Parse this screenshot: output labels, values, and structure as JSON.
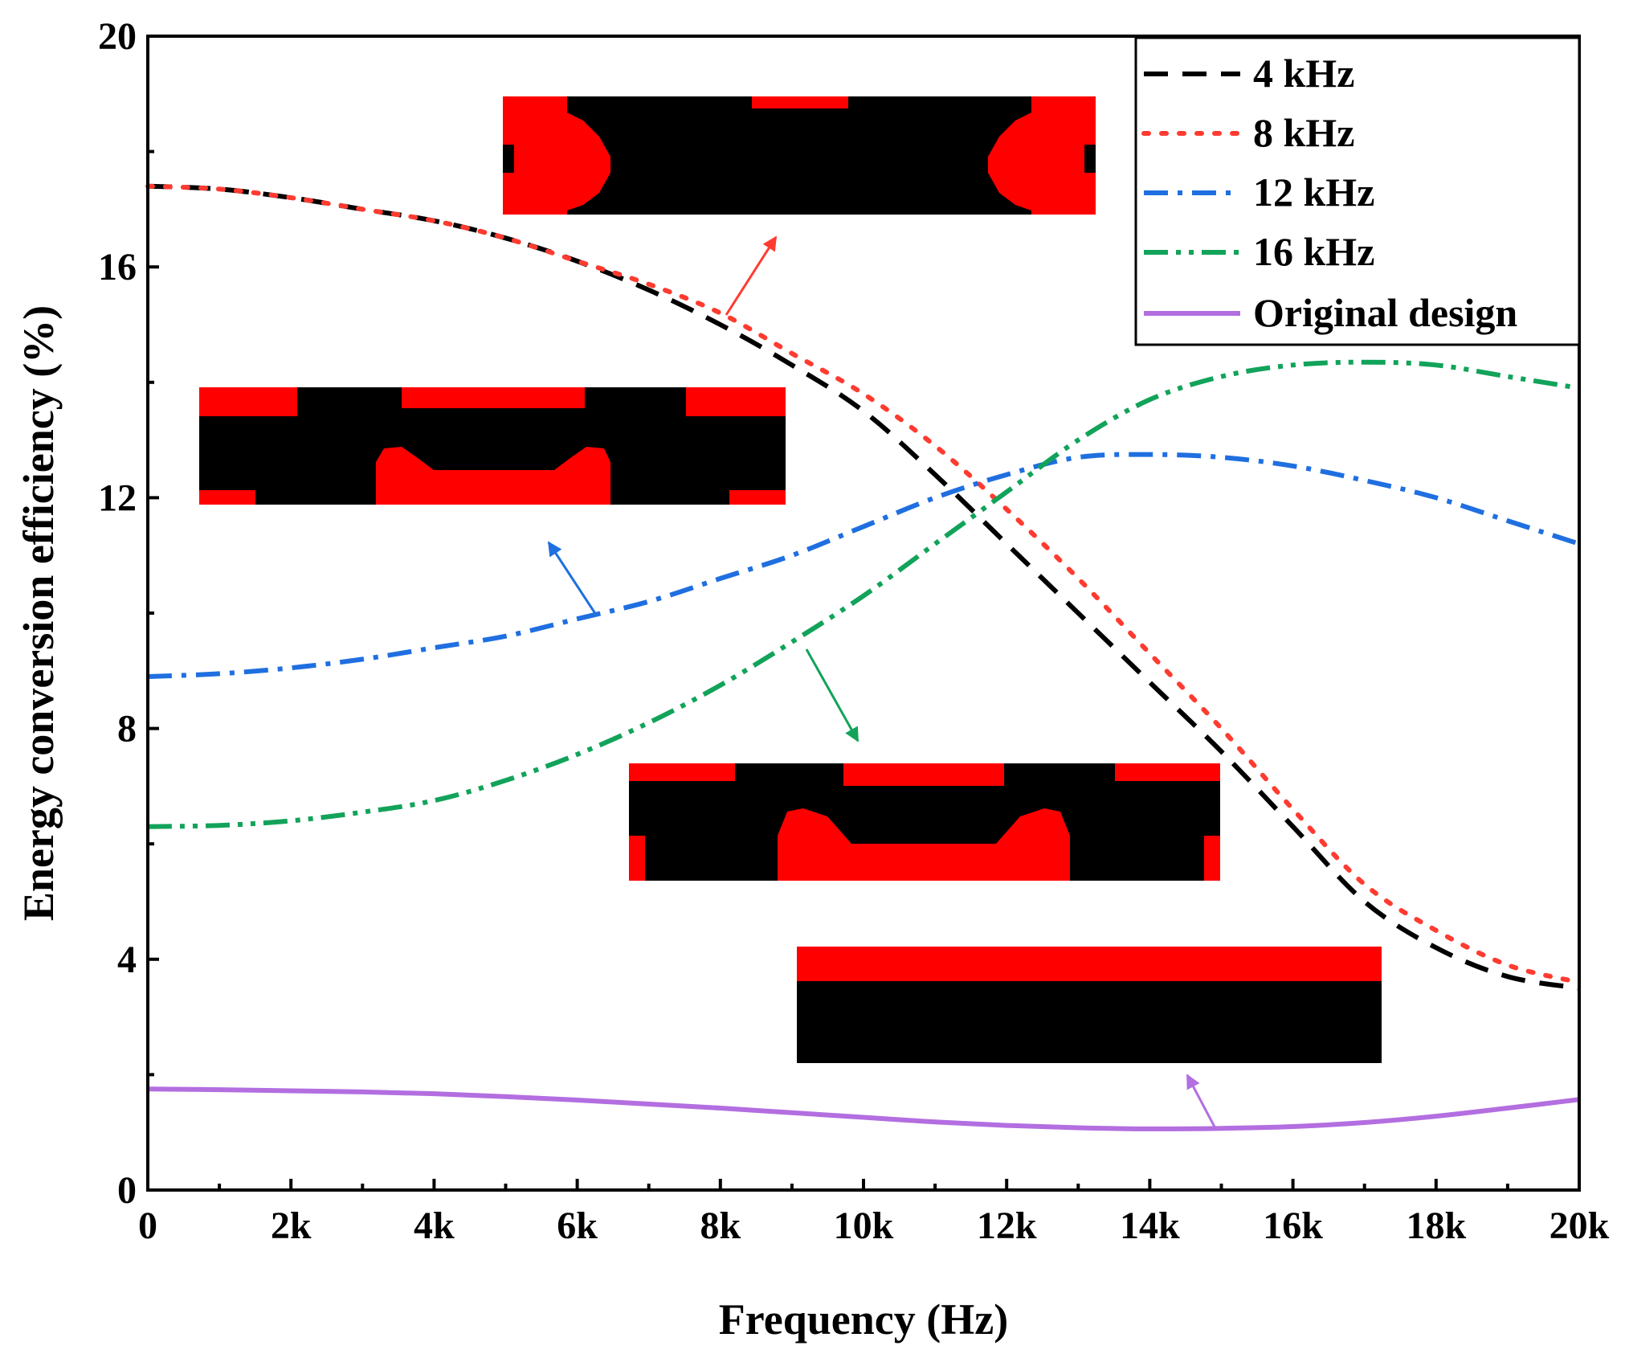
{
  "chart_data": {
    "type": "line",
    "title": "",
    "xlabel": "Frequency (Hz)",
    "ylabel": "Energy conversion efficiency (%)",
    "xlim": [
      0,
      20000
    ],
    "ylim": [
      0,
      20
    ],
    "x_ticks": [
      0,
      2000,
      4000,
      6000,
      8000,
      10000,
      12000,
      14000,
      16000,
      18000,
      20000
    ],
    "x_tick_labels": [
      "0",
      "2k",
      "4k",
      "6k",
      "8k",
      "10k",
      "12k",
      "14k",
      "16k",
      "18k",
      "20k"
    ],
    "y_ticks": [
      0,
      4,
      8,
      12,
      16,
      20
    ],
    "y_tick_labels": [
      "0",
      "4",
      "8",
      "12",
      "16",
      "20"
    ],
    "legend_position": "top-right",
    "x": [
      0,
      1000,
      2000,
      3000,
      4000,
      5000,
      6000,
      7000,
      8000,
      9000,
      10000,
      11000,
      12000,
      13000,
      14000,
      15000,
      16000,
      17000,
      18000,
      19000,
      20000
    ],
    "series": [
      {
        "name": "4 kHz",
        "color": "#000000",
        "dash": "dash",
        "values": [
          17.4,
          17.35,
          17.2,
          17.0,
          16.8,
          16.5,
          16.1,
          15.6,
          15.0,
          14.3,
          13.5,
          12.4,
          11.2,
          10.0,
          8.8,
          7.6,
          6.3,
          5.0,
          4.2,
          3.7,
          3.5
        ]
      },
      {
        "name": "8 kHz",
        "color": "#ff3b30",
        "dash": "dot",
        "values": [
          17.4,
          17.35,
          17.2,
          17.0,
          16.8,
          16.5,
          16.1,
          15.7,
          15.2,
          14.5,
          13.8,
          12.9,
          11.8,
          10.6,
          9.3,
          8.0,
          6.6,
          5.3,
          4.5,
          3.9,
          3.6
        ]
      },
      {
        "name": "12 kHz",
        "color": "#1f6fe0",
        "dash": "dashdot",
        "values": [
          8.9,
          8.95,
          9.05,
          9.2,
          9.4,
          9.6,
          9.9,
          10.2,
          10.6,
          11.0,
          11.5,
          12.0,
          12.4,
          12.7,
          12.75,
          12.7,
          12.55,
          12.3,
          12.0,
          11.6,
          11.2
        ]
      },
      {
        "name": "16 kHz",
        "color": "#12a35a",
        "dash": "dashdotdot",
        "values": [
          6.3,
          6.32,
          6.4,
          6.55,
          6.75,
          7.1,
          7.55,
          8.1,
          8.75,
          9.5,
          10.3,
          11.2,
          12.1,
          13.0,
          13.7,
          14.1,
          14.3,
          14.35,
          14.3,
          14.1,
          13.9
        ]
      },
      {
        "name": "Original design",
        "color": "#b36ee0",
        "dash": "solid",
        "values": [
          1.75,
          1.74,
          1.72,
          1.7,
          1.67,
          1.62,
          1.56,
          1.49,
          1.42,
          1.34,
          1.26,
          1.18,
          1.12,
          1.08,
          1.06,
          1.07,
          1.1,
          1.17,
          1.28,
          1.42,
          1.57
        ]
      }
    ],
    "annotations": [
      {
        "name": "inset-4-8-khz-design",
        "arrow_color": "#ff3b30"
      },
      {
        "name": "inset-12-khz-design",
        "arrow_color": "#1f6fe0"
      },
      {
        "name": "inset-16-khz-design",
        "arrow_color": "#12a35a"
      },
      {
        "name": "inset-original-design",
        "arrow_color": "#b36ee0"
      }
    ]
  }
}
